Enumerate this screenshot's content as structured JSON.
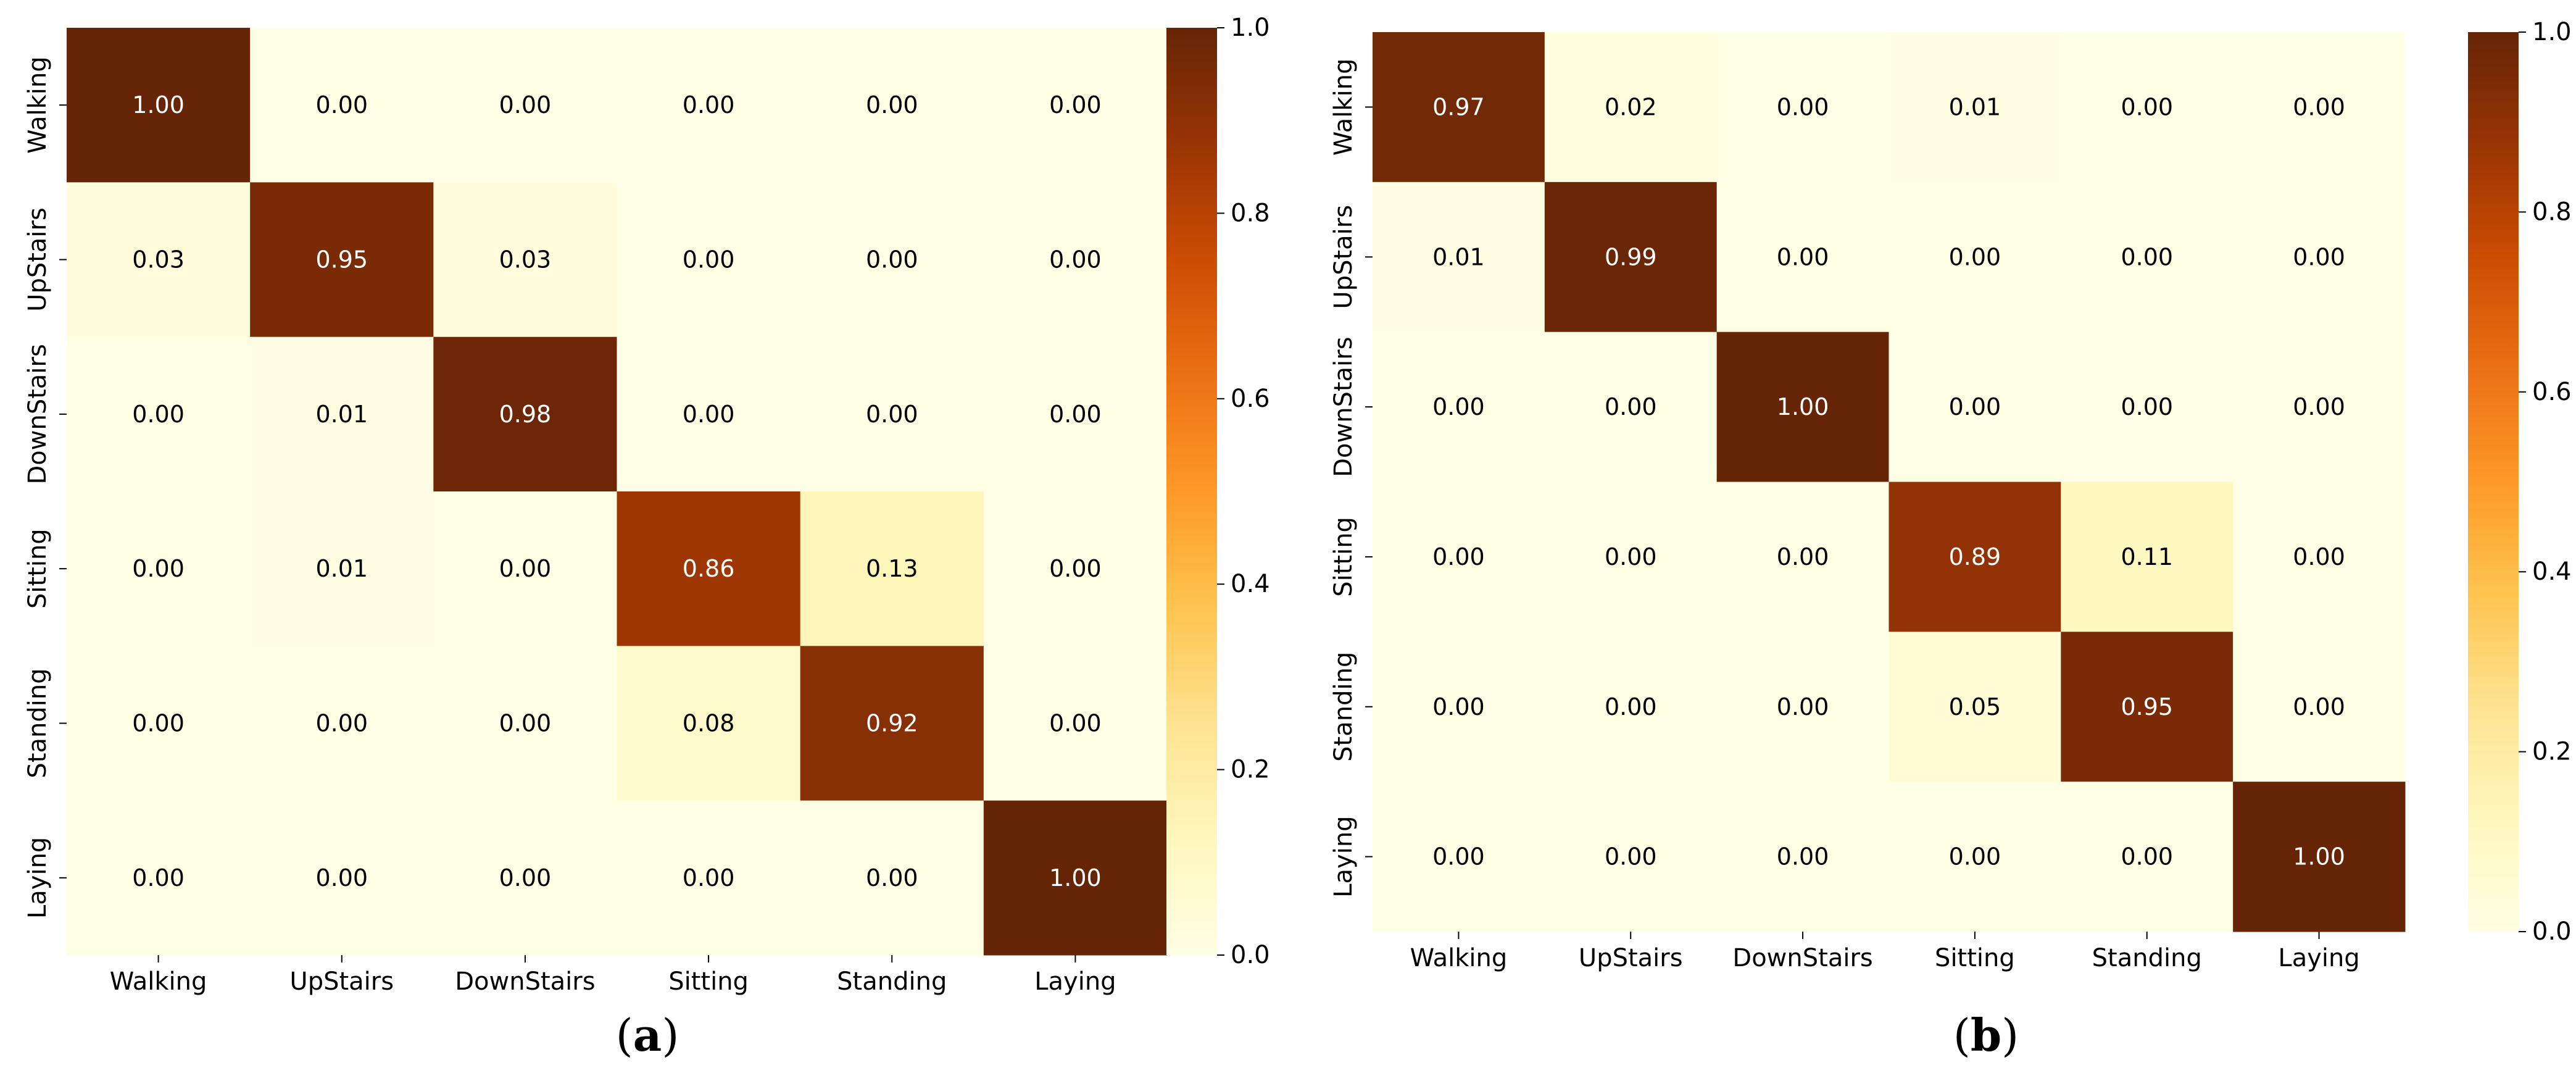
{
  "chart_data": [
    {
      "type": "heatmap",
      "caption": "(a)",
      "caption_label": "a",
      "title": "",
      "xlabel": "",
      "ylabel": "",
      "x_labels": [
        "Walking",
        "UpStairs",
        "DownStairs",
        "Sitting",
        "Standing",
        "Laying"
      ],
      "y_labels": [
        "Walking",
        "UpStairs",
        "DownStairs",
        "Sitting",
        "Standing",
        "Laying"
      ],
      "values": [
        [
          1.0,
          0.0,
          0.0,
          0.0,
          0.0,
          0.0
        ],
        [
          0.03,
          0.95,
          0.03,
          0.0,
          0.0,
          0.0
        ],
        [
          0.0,
          0.01,
          0.98,
          0.0,
          0.0,
          0.0
        ],
        [
          0.0,
          0.01,
          0.0,
          0.86,
          0.13,
          0.0
        ],
        [
          0.0,
          0.0,
          0.0,
          0.08,
          0.92,
          0.0
        ],
        [
          0.0,
          0.0,
          0.0,
          0.0,
          0.0,
          1.0
        ]
      ],
      "value_format": "0.00",
      "colormap": "YlOrBr",
      "vmin": 0.0,
      "vmax": 1.0,
      "colorbar_ticks": [
        "0.0",
        "0.2",
        "0.4",
        "0.6",
        "0.8",
        "1.0"
      ]
    },
    {
      "type": "heatmap",
      "caption": "(b)",
      "caption_label": "b",
      "title": "",
      "xlabel": "",
      "ylabel": "",
      "x_labels": [
        "Walking",
        "UpStairs",
        "DownStairs",
        "Sitting",
        "Standing",
        "Laying"
      ],
      "y_labels": [
        "Walking",
        "UpStairs",
        "DownStairs",
        "Sitting",
        "Standing",
        "Laying"
      ],
      "values": [
        [
          0.97,
          0.02,
          0.0,
          0.01,
          0.0,
          0.0
        ],
        [
          0.01,
          0.99,
          0.0,
          0.0,
          0.0,
          0.0
        ],
        [
          0.0,
          0.0,
          1.0,
          0.0,
          0.0,
          0.0
        ],
        [
          0.0,
          0.0,
          0.0,
          0.89,
          0.11,
          0.0
        ],
        [
          0.0,
          0.0,
          0.0,
          0.05,
          0.95,
          0.0
        ],
        [
          0.0,
          0.0,
          0.0,
          0.0,
          0.0,
          1.0
        ]
      ],
      "value_format": "0.00",
      "colormap": "YlOrBr",
      "vmin": 0.0,
      "vmax": 1.0,
      "colorbar_ticks": [
        "0.0",
        "0.2",
        "0.4",
        "0.6",
        "0.8",
        "1.0"
      ]
    }
  ],
  "colors": {
    "background": "#ffffff",
    "text_dark": "#000000",
    "text_light": "#ffffff",
    "cmap_stops": [
      "#ffffe5",
      "#fff7bc",
      "#fee391",
      "#fec44f",
      "#fe9929",
      "#ec7014",
      "#cc4c02",
      "#993404",
      "#662506"
    ]
  }
}
